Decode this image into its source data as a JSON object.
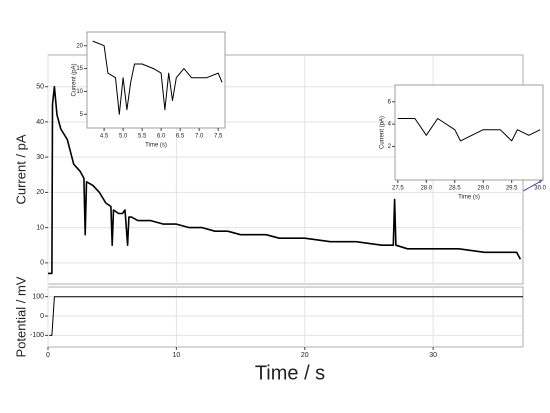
{
  "chart_data": [
    {
      "type": "line",
      "ylabel": "Current / pA",
      "xlim": [
        0,
        37
      ],
      "ylim": [
        -6,
        59
      ],
      "yticks": [
        0,
        10,
        20,
        30,
        40,
        50
      ],
      "grid": true,
      "series": [
        {
          "color": "#000000",
          "x": [
            0,
            0.1,
            0.2,
            0.3,
            0.35,
            0.5,
            0.7,
            1,
            1.5,
            2,
            2.5,
            2.8,
            2.9,
            3,
            3.5,
            4,
            4.5,
            4.9,
            5,
            5.1,
            5.5,
            5.8,
            6,
            6.2,
            6.3,
            6.5,
            7,
            8,
            9,
            10,
            11,
            12,
            13,
            14,
            15,
            16,
            17,
            18,
            19,
            20,
            22,
            24,
            26,
            26.9,
            27,
            27.1,
            28,
            29,
            30,
            32,
            34,
            36,
            36.5,
            36.8
          ],
          "values": [
            -3,
            -3,
            -3,
            -3,
            45,
            50,
            42,
            38,
            35,
            28,
            26,
            24,
            8,
            23,
            22,
            20,
            17,
            16,
            5,
            15,
            14,
            14,
            15,
            5,
            13,
            13,
            12,
            12,
            11,
            11,
            10,
            10,
            9,
            9,
            8,
            8,
            8,
            7,
            7,
            7,
            6,
            6,
            5,
            5,
            18,
            5,
            4,
            4,
            4,
            4,
            3,
            3,
            3,
            1
          ]
        }
      ]
    },
    {
      "type": "line",
      "ylabel": "Potential / mV",
      "xlabel": "Time / s",
      "xlim": [
        0,
        37
      ],
      "ylim": [
        -160,
        150
      ],
      "xticks": [
        0,
        10,
        20,
        30
      ],
      "yticks": [
        -100,
        0,
        100
      ],
      "grid": true,
      "series": [
        {
          "color": "#000000",
          "x": [
            0.1,
            0.3,
            0.5,
            37
          ],
          "values": [
            -100,
            -100,
            100,
            100
          ]
        }
      ]
    },
    {
      "type": "line",
      "xlabel": "Time (s)",
      "ylabel": "Current (pA)",
      "xlim": [
        4.05,
        7.68
      ],
      "ylim": [
        2,
        23
      ],
      "xticks": [
        4.5,
        {
          "value": 5,
          "label": "5.0"
        },
        5.5,
        {
          "value": 6,
          "label": "6.0"
        },
        6.5,
        {
          "value": 7,
          "label": "7.0"
        },
        7.5
      ],
      "yticks": [
        5,
        10,
        15,
        20
      ],
      "series": [
        {
          "color": "#000000",
          "x": [
            4.2,
            4.5,
            4.6,
            4.8,
            4.9,
            5.0,
            5.1,
            5.2,
            5.3,
            5.5,
            5.8,
            6.0,
            6.1,
            6.2,
            6.3,
            6.4,
            6.6,
            6.8,
            7.2,
            7.5,
            7.6
          ],
          "values": [
            21,
            20,
            14,
            13,
            5,
            13,
            6,
            12,
            16,
            16,
            15,
            14,
            6,
            14,
            8,
            13,
            15,
            13,
            13,
            14,
            12
          ]
        }
      ]
    },
    {
      "type": "line",
      "xlabel": "Time (s)",
      "ylabel": "Current (pA)",
      "xlim": [
        27.45,
        30.05
      ],
      "ylim": [
        -1,
        7.5
      ],
      "xticks": [
        27.5,
        {
          "value": 28,
          "label": "28.0"
        },
        28.5,
        {
          "value": 29,
          "label": "29.0"
        },
        29.5,
        {
          "value": 30,
          "label": "30.0"
        }
      ],
      "yticks": [
        2,
        4,
        6
      ],
      "series": [
        {
          "color": "#000000",
          "x": [
            27.5,
            27.8,
            28.0,
            28.2,
            28.5,
            28.6,
            28.8,
            29.0,
            29.3,
            29.5,
            29.6,
            29.8,
            30.0
          ],
          "values": [
            4.5,
            4.5,
            3,
            4.5,
            3.5,
            2.5,
            3,
            3.5,
            3.5,
            2.5,
            3.5,
            3,
            3.5
          ]
        }
      ]
    }
  ]
}
